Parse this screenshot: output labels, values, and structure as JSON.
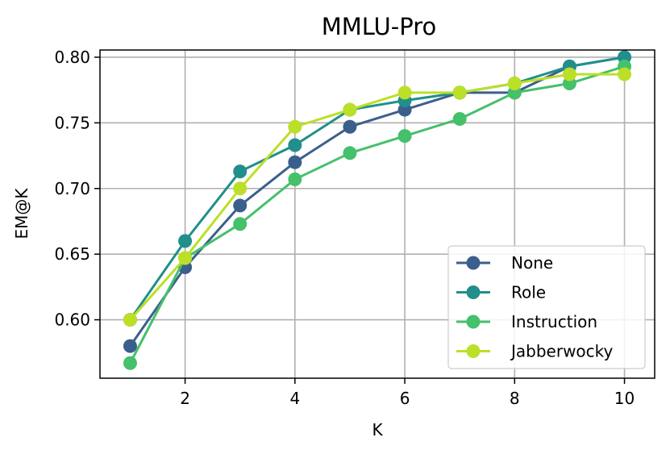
{
  "chart_data": {
    "type": "line",
    "title": "MMLU-Pro",
    "xlabel": "K",
    "ylabel": "EM@K",
    "x": [
      1,
      2,
      3,
      4,
      5,
      6,
      7,
      8,
      9,
      10
    ],
    "xlim": [
      0.45,
      10.55
    ],
    "ylim": [
      0.5555,
      0.8055
    ],
    "xticks": [
      2,
      4,
      6,
      8,
      10
    ],
    "xtick_labels": [
      "2",
      "4",
      "6",
      "8",
      "10"
    ],
    "yticks": [
      0.6,
      0.65,
      0.7,
      0.75,
      0.8
    ],
    "ytick_labels": [
      "0.60",
      "0.65",
      "0.70",
      "0.75",
      "0.80"
    ],
    "grid": true,
    "legend_position": "bottom-right",
    "series": [
      {
        "name": "None",
        "color": "#3b5f8c",
        "values": [
          0.58,
          0.64,
          0.687,
          0.72,
          0.747,
          0.76,
          0.773,
          0.773,
          0.793,
          0.8
        ]
      },
      {
        "name": "Role",
        "color": "#218f8b",
        "values": [
          0.6,
          0.66,
          0.713,
          0.733,
          0.76,
          0.767,
          0.773,
          0.78,
          0.793,
          0.8
        ]
      },
      {
        "name": "Instruction",
        "color": "#45c06b",
        "values": [
          0.567,
          0.647,
          0.673,
          0.707,
          0.727,
          0.74,
          0.753,
          0.773,
          0.78,
          0.793
        ]
      },
      {
        "name": "Jabberwocky",
        "color": "#bcdf27",
        "values": [
          0.6,
          0.647,
          0.7,
          0.747,
          0.76,
          0.773,
          0.773,
          0.78,
          0.787,
          0.787
        ]
      }
    ]
  }
}
